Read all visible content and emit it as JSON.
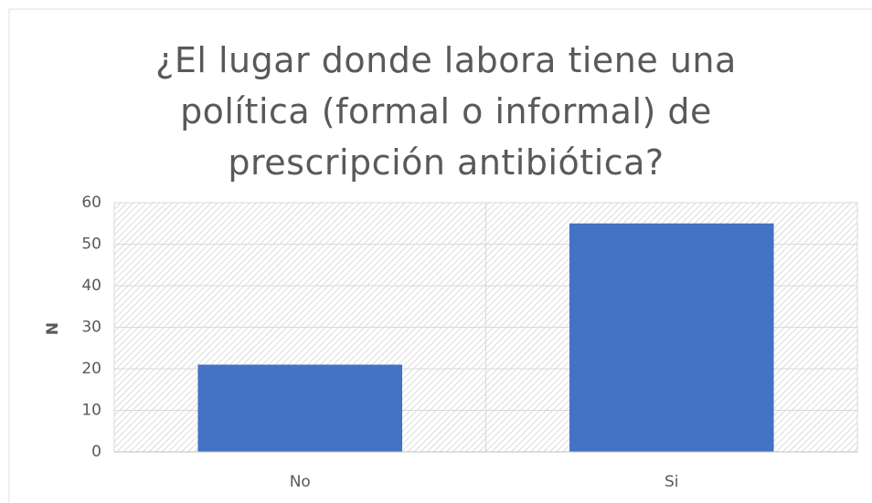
{
  "chart_data": {
    "type": "bar",
    "title": "¿El lugar donde labora tiene una política (formal o informal) de prescripción antibiótica?",
    "y_label": "N",
    "categories": [
      "No",
      "Si"
    ],
    "values": [
      21,
      55
    ],
    "color": "#4472c4",
    "ylim": [
      0,
      60
    ],
    "yticks": [
      0,
      10,
      20,
      30,
      40,
      50,
      60
    ],
    "grid": true
  }
}
